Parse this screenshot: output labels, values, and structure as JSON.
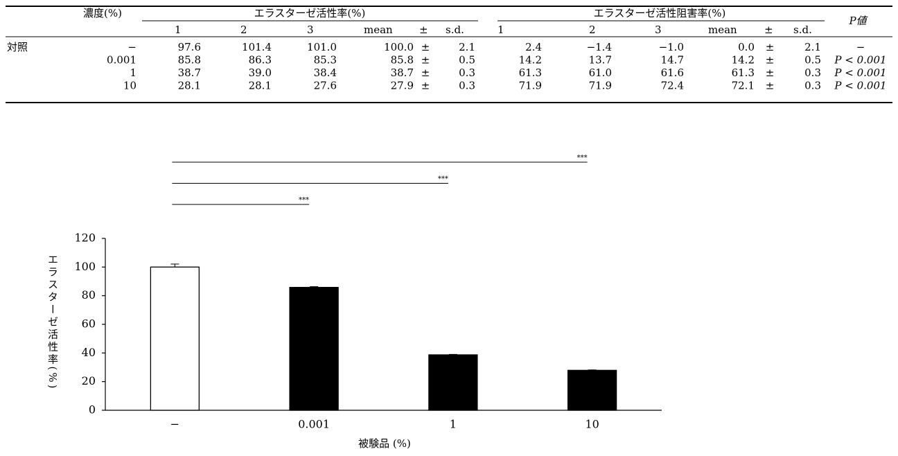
{
  "table": {
    "header": {
      "conc": "濃度(%)",
      "groups": [
        "エラスターゼ活性率(%)",
        "エラスターゼ活性阻害率(%)"
      ],
      "sub": [
        "1",
        "2",
        "3",
        "mean",
        "±",
        "s.d."
      ],
      "p": "P値"
    },
    "rows": [
      {
        "group": "対照",
        "conc": "−",
        "cells": [
          "97.6",
          "101.4",
          "101.0",
          "100.0",
          "±",
          "2.1",
          "2.4",
          "−1.4",
          "−1.0",
          "0.0",
          "±",
          "2.1"
        ],
        "p": "−"
      },
      {
        "conc": "0.001",
        "cells": [
          "85.8",
          "86.3",
          "85.3",
          "85.8",
          "±",
          "0.5",
          "14.2",
          "13.7",
          "14.7",
          "14.2",
          "±",
          "0.5"
        ],
        "p": "P < 0.001"
      },
      {
        "conc": "1",
        "cells": [
          "38.7",
          "39.0",
          "38.4",
          "38.7",
          "±",
          "0.3",
          "61.3",
          "61.0",
          "61.6",
          "61.3",
          "±",
          "0.3"
        ],
        "p": "P < 0.001"
      },
      {
        "conc": "10",
        "cells": [
          "28.1",
          "28.1",
          "27.6",
          "27.9",
          "±",
          "0.3",
          "71.9",
          "71.9",
          "72.4",
          "72.1",
          "±",
          "0.3"
        ],
        "p": "P < 0.001"
      }
    ]
  },
  "chart_data": {
    "type": "bar",
    "x_label": "被験品 (%)",
    "y_label": "エラスターゼ活性率(%)",
    "categories": [
      "−",
      "0.001",
      "1",
      "10"
    ],
    "values": [
      100.0,
      85.8,
      38.7,
      27.9
    ],
    "errors": [
      2.1,
      0.5,
      0.3,
      0.3
    ],
    "colors": [
      "#ffffff",
      "#000000",
      "#000000",
      "#000000"
    ],
    "edge_color": "#000000",
    "ylim": [
      0,
      120
    ],
    "yticks": [
      0,
      20,
      40,
      60,
      80,
      100,
      120
    ],
    "significance": [
      {
        "from": "−",
        "to": "10",
        "label": "***"
      },
      {
        "from": "−",
        "to": "1",
        "label": "***"
      },
      {
        "from": "−",
        "to": "0.001",
        "label": "***"
      }
    ]
  }
}
